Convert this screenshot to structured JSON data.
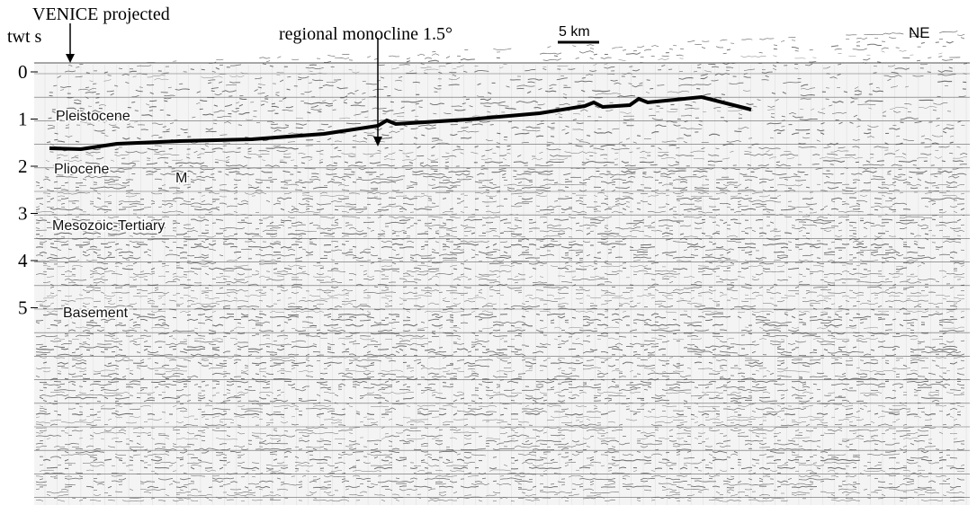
{
  "header": {
    "well": "VENICE projected",
    "axis_title": "twt s",
    "monocline": "regional monocline 1.5°",
    "scale_bar": "5 km",
    "direction": "NE"
  },
  "depth_axis": {
    "ticks": [
      "0",
      "1",
      "2",
      "3",
      "4",
      "5"
    ]
  },
  "units": {
    "labels": [
      "Pleistocene",
      "Pliocene",
      "M",
      "Mesozoic-Tertiary",
      "Basement"
    ]
  }
}
